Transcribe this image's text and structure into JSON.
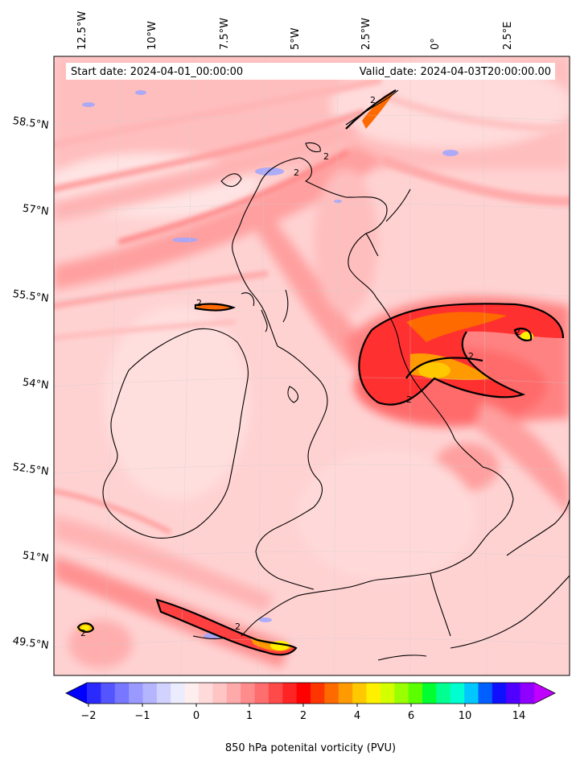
{
  "header": {
    "start_date": "Start date: 2024-04-01_00:00:00",
    "valid_date": "Valid_date: 2024-04-03T20:00:00.00"
  },
  "axes": {
    "lon_labels": [
      "12.5°W",
      "10°W",
      "7.5°W",
      "5°W",
      "2.5°W",
      "0°",
      "2.5°E"
    ],
    "lat_labels": [
      "58.5°N",
      "57°N",
      "55.5°N",
      "54°N",
      "52.5°N",
      "51°N",
      "49.5°N"
    ]
  },
  "contour_label": "2",
  "colorbar": {
    "title": "850 hPa potenital vorticity (PVU)",
    "tick_labels": [
      "−2",
      "−1",
      "0",
      "1",
      "2",
      "4",
      "6",
      "10",
      "14"
    ],
    "colors": [
      "#0000ff",
      "#2a2aff",
      "#5555ff",
      "#7777ff",
      "#9999ff",
      "#b4b4ff",
      "#d2d2ff",
      "#ececff",
      "#ffeeee",
      "#ffdada",
      "#ffc4c4",
      "#ffaaaa",
      "#ff8c8c",
      "#ff6e6e",
      "#ff4a4a",
      "#ff2424",
      "#ff0000",
      "#ff3500",
      "#ff6a00",
      "#ff9a00",
      "#ffc800",
      "#fff000",
      "#d4ff00",
      "#9aff00",
      "#5cff00",
      "#00ff30",
      "#00ff90",
      "#00ffd0",
      "#00c8ff",
      "#0060ff",
      "#1010ff",
      "#5000ff",
      "#9000ff",
      "#c000ff"
    ]
  }
}
